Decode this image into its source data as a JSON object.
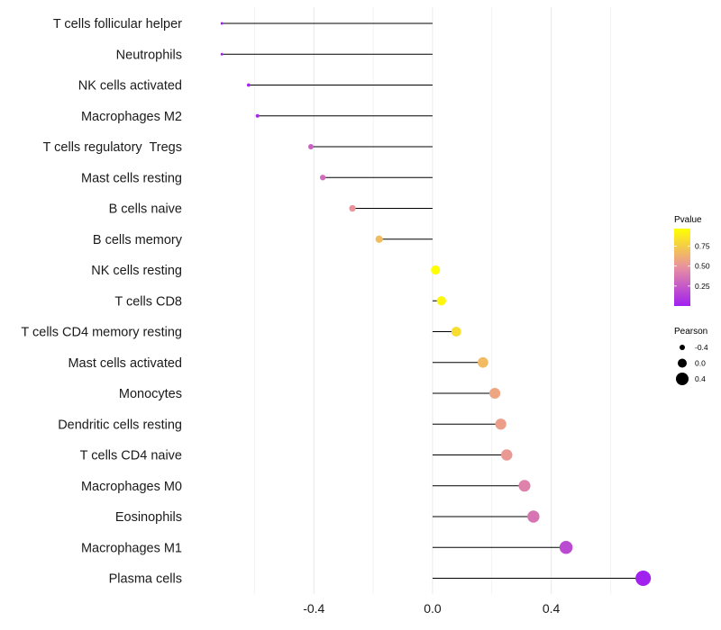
{
  "chart_data": {
    "type": "lollipop",
    "title": "",
    "xlabel": "",
    "ylabel": "",
    "xlim": [
      -0.82,
      0.79
    ],
    "x_ticks": [
      -0.4,
      0.0,
      0.4
    ],
    "x_tick_labels": [
      "-0.4",
      "0.0",
      "0.4"
    ],
    "grid": true,
    "categories": [
      {
        "label": "T cells follicular helper",
        "pearson": -0.71,
        "pvalue": 0.0
      },
      {
        "label": "Neutrophils",
        "pearson": -0.71,
        "pvalue": 0.0
      },
      {
        "label": "NK cells activated",
        "pearson": -0.62,
        "pvalue": 0.02
      },
      {
        "label": "Macrophages M2",
        "pearson": -0.59,
        "pvalue": 0.05
      },
      {
        "label": "T cells regulatory  Tregs",
        "pearson": -0.41,
        "pvalue": 0.28
      },
      {
        "label": "Mast cells resting",
        "pearson": -0.37,
        "pvalue": 0.33
      },
      {
        "label": "B cells naive",
        "pearson": -0.27,
        "pvalue": 0.5
      },
      {
        "label": "B cells memory",
        "pearson": -0.18,
        "pvalue": 0.68
      },
      {
        "label": "NK cells resting",
        "pearson": 0.01,
        "pvalue": 0.97
      },
      {
        "label": "T cells CD8",
        "pearson": 0.03,
        "pvalue": 0.93
      },
      {
        "label": "T cells CD4 memory resting",
        "pearson": 0.08,
        "pvalue": 0.82
      },
      {
        "label": "Mast cells activated",
        "pearson": 0.17,
        "pvalue": 0.67
      },
      {
        "label": "Monocytes",
        "pearson": 0.21,
        "pvalue": 0.58
      },
      {
        "label": "Dendritic cells resting",
        "pearson": 0.23,
        "pvalue": 0.55
      },
      {
        "label": "T cells CD4 naive",
        "pearson": 0.25,
        "pvalue": 0.52
      },
      {
        "label": "Macrophages M0",
        "pearson": 0.31,
        "pvalue": 0.42
      },
      {
        "label": "Eosinophils",
        "pearson": 0.34,
        "pvalue": 0.37
      },
      {
        "label": "Macrophages M1",
        "pearson": 0.45,
        "pvalue": 0.18
      },
      {
        "label": "Plasma cells",
        "pearson": 0.71,
        "pvalue": 0.01
      }
    ],
    "legend_color": {
      "title": "Pvalue",
      "ticks": [
        0.25,
        0.5,
        0.75
      ],
      "tick_labels": [
        "0.25",
        "0.50",
        "0.75"
      ],
      "range": [
        0.0,
        0.97
      ],
      "colors": [
        "#a020f0",
        "#e890a0",
        "#ffff00"
      ],
      "placement": "right"
    },
    "legend_size": {
      "title": "Pearson",
      "values": [
        -0.4,
        0.0,
        0.4
      ],
      "labels": [
        "-0.4",
        "0.0",
        "0.4"
      ],
      "placement": "right"
    },
    "style": {
      "stem_color": "#000000",
      "grid_color": "#ebebeb",
      "text_color": "#1a1a1a"
    }
  }
}
